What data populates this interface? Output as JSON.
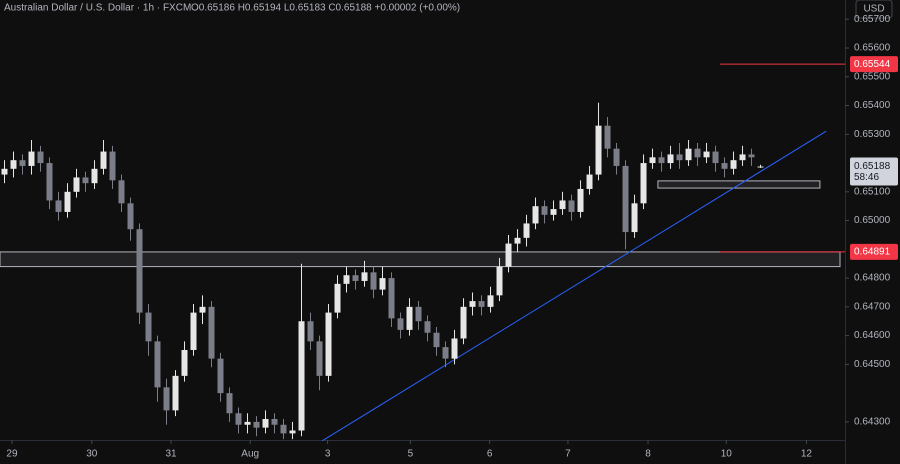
{
  "chart_data": {
    "type": "candlestick",
    "title": "Australian Dollar / U.S. Dollar · 1h · FXCM",
    "ohlc_label": "O0.65186 H0.65194 L0.65183 C0.65188 +0.00002 (+0.00%)",
    "currency": "USD",
    "up_color": "#e6e6e6",
    "down_color": "#7b7e88",
    "open": [
      0.6516,
      0.6518,
      0.6521,
      0.6519,
      0.6524,
      0.652,
      0.6507,
      0.6503,
      0.651,
      0.6515,
      0.6513,
      0.6518,
      0.6524,
      0.6514,
      0.6506,
      0.6497,
      0.6468,
      0.6458,
      0.6442,
      0.6434,
      0.6446,
      0.6455,
      0.6468,
      0.647,
      0.6452,
      0.644,
      0.6433,
      0.6429,
      0.643,
      0.6428,
      0.6431,
      0.6429,
      0.6426,
      0.6427,
      0.6465,
      0.6458,
      0.6446,
      0.6468,
      0.6478,
      0.6481,
      0.6479,
      0.6482,
      0.6476,
      0.648,
      0.6466,
      0.6462,
      0.647,
      0.6465,
      0.6461,
      0.6456,
      0.6452,
      0.6459,
      0.647,
      0.6472,
      0.647,
      0.6474,
      0.6484,
      0.6492,
      0.6494,
      0.6499,
      0.6505,
      0.6502,
      0.6504,
      0.6507,
      0.6503,
      0.6511,
      0.6516,
      0.6533,
      0.6525,
      0.6519,
      0.6496,
      0.6506,
      0.652,
      0.6522,
      0.652,
      0.6523,
      0.6521,
      0.6525,
      0.6522,
      0.6524,
      0.652,
      0.6518,
      0.6521,
      0.6523,
      0.65186
    ],
    "high": [
      0.6521,
      0.6524,
      0.6523,
      0.6528,
      0.6526,
      0.6522,
      0.651,
      0.6513,
      0.6518,
      0.6517,
      0.6521,
      0.6528,
      0.6526,
      0.6516,
      0.6508,
      0.6499,
      0.6471,
      0.646,
      0.6445,
      0.6448,
      0.6458,
      0.6471,
      0.6474,
      0.6472,
      0.6454,
      0.6442,
      0.6435,
      0.6433,
      0.6432,
      0.6434,
      0.6433,
      0.6431,
      0.643,
      0.6485,
      0.6468,
      0.646,
      0.6471,
      0.6481,
      0.6484,
      0.6483,
      0.6486,
      0.6484,
      0.6484,
      0.6482,
      0.6468,
      0.6473,
      0.6472,
      0.6467,
      0.6463,
      0.6458,
      0.6462,
      0.6473,
      0.6475,
      0.6474,
      0.6477,
      0.6487,
      0.6495,
      0.6497,
      0.6502,
      0.6508,
      0.6507,
      0.6507,
      0.651,
      0.6509,
      0.6514,
      0.6519,
      0.6541,
      0.6536,
      0.6527,
      0.6521,
      0.6509,
      0.6523,
      0.6525,
      0.6524,
      0.6526,
      0.6527,
      0.6528,
      0.6527,
      0.6527,
      0.6526,
      0.6522,
      0.6524,
      0.6526,
      0.6525,
      0.65194
    ],
    "low": [
      0.6513,
      0.6515,
      0.6516,
      0.6516,
      0.6517,
      0.6504,
      0.65,
      0.6501,
      0.6508,
      0.651,
      0.6511,
      0.6516,
      0.6511,
      0.6503,
      0.6493,
      0.6464,
      0.6453,
      0.6437,
      0.6429,
      0.6432,
      0.6444,
      0.6453,
      0.6464,
      0.6449,
      0.6437,
      0.643,
      0.6426,
      0.6426,
      0.6425,
      0.6426,
      0.6426,
      0.6424,
      0.6424,
      0.6425,
      0.6455,
      0.6441,
      0.6444,
      0.6466,
      0.6475,
      0.6476,
      0.6477,
      0.6473,
      0.6474,
      0.6463,
      0.6459,
      0.646,
      0.6462,
      0.6458,
      0.6453,
      0.6449,
      0.645,
      0.6457,
      0.6467,
      0.6467,
      0.6468,
      0.6472,
      0.6482,
      0.6489,
      0.6491,
      0.6497,
      0.6499,
      0.65,
      0.6502,
      0.65,
      0.6501,
      0.6509,
      0.6514,
      0.6522,
      0.6516,
      0.649,
      0.6494,
      0.6504,
      0.6518,
      0.6517,
      0.6518,
      0.6518,
      0.6519,
      0.6519,
      0.652,
      0.6517,
      0.6515,
      0.6516,
      0.6519,
      0.6519,
      0.65183
    ],
    "close": [
      0.6518,
      0.6521,
      0.6519,
      0.6524,
      0.652,
      0.6507,
      0.6503,
      0.651,
      0.6515,
      0.6513,
      0.6518,
      0.6524,
      0.6514,
      0.6506,
      0.6497,
      0.6468,
      0.6458,
      0.6442,
      0.6434,
      0.6446,
      0.6455,
      0.6468,
      0.647,
      0.6452,
      0.644,
      0.6433,
      0.6429,
      0.643,
      0.6428,
      0.6431,
      0.6429,
      0.6426,
      0.6427,
      0.6465,
      0.6458,
      0.6446,
      0.6468,
      0.6478,
      0.6481,
      0.6479,
      0.6482,
      0.6476,
      0.648,
      0.6466,
      0.6462,
      0.647,
      0.6465,
      0.6461,
      0.6456,
      0.6452,
      0.6459,
      0.647,
      0.6472,
      0.647,
      0.6474,
      0.6484,
      0.6492,
      0.6494,
      0.6499,
      0.6505,
      0.6502,
      0.6504,
      0.6507,
      0.6503,
      0.6511,
      0.6516,
      0.6533,
      0.6525,
      0.6519,
      0.6496,
      0.6506,
      0.652,
      0.6522,
      0.652,
      0.6523,
      0.6521,
      0.6525,
      0.6522,
      0.6524,
      0.652,
      0.6518,
      0.6521,
      0.6523,
      0.6522,
      0.65188
    ],
    "xlim": [
      0,
      93.33
    ],
    "xticks": [
      {
        "value": 1.33,
        "label": "29"
      },
      {
        "value": 10.2,
        "label": "30"
      },
      {
        "value": 19,
        "label": "31"
      },
      {
        "value": 27.8,
        "label": "Aug"
      },
      {
        "value": 36.4,
        "label": "3"
      },
      {
        "value": 45.6,
        "label": "5"
      },
      {
        "value": 54.4,
        "label": "6"
      },
      {
        "value": 63.1,
        "label": "7"
      },
      {
        "value": 72,
        "label": "8"
      },
      {
        "value": 80.7,
        "label": "10"
      },
      {
        "value": 89.6,
        "label": "12"
      }
    ],
    "ylim": [
      0.64237,
      0.65767
    ],
    "yticks": [
      {
        "value": 0.657,
        "label": "0.65700"
      },
      {
        "value": 0.656,
        "label": "0.65600"
      },
      {
        "value": 0.655,
        "label": "0.65500"
      },
      {
        "value": 0.654,
        "label": "0.65400"
      },
      {
        "value": 0.653,
        "label": "0.65300"
      },
      {
        "value": 0.651,
        "label": "0.65100"
      },
      {
        "value": 0.65,
        "label": "0.65000"
      },
      {
        "value": 0.648,
        "label": "0.64800"
      },
      {
        "value": 0.647,
        "label": "0.64700"
      },
      {
        "value": 0.646,
        "label": "0.64600"
      },
      {
        "value": 0.645,
        "label": "0.64500"
      },
      {
        "value": 0.643,
        "label": "0.64300"
      }
    ],
    "levels": [
      {
        "value": 0.65544,
        "start": 80,
        "color": "#f23645"
      },
      {
        "value": 0.64891,
        "start": 80,
        "color": "#f23645"
      }
    ],
    "zones": [
      {
        "start": 0,
        "end": 93.33,
        "top": 0.64891,
        "bottom": 0.6484
      },
      {
        "start": 73.1,
        "end": 91.1,
        "top": 0.65138,
        "bottom": 0.65113
      }
    ],
    "trendline": {
      "x": [
        35.8,
        91.8
      ],
      "y": [
        0.64234,
        0.65311
      ],
      "color": "#2962ff"
    },
    "last_price": 0.65188,
    "countdown": "58:46"
  }
}
